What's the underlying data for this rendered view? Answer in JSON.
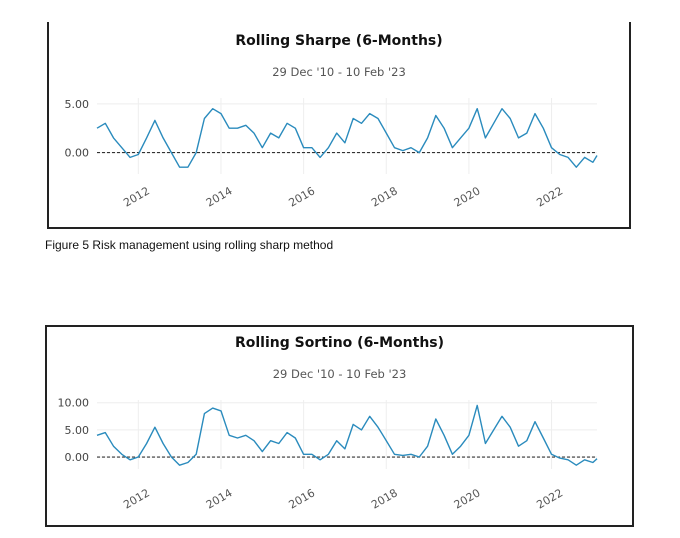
{
  "caption": "Figure 5 Risk management using rolling sharp method",
  "charts": [
    {
      "title": "Rolling Sharpe (6-Months)",
      "subtitle": "29 Dec '10 - 10 Feb '23"
    },
    {
      "title": "Rolling Sortino (6-Months)",
      "subtitle": "29 Dec '10 - 10 Feb '23"
    }
  ],
  "colors": {
    "line": "#2a8bbd",
    "zero_line": "#333333",
    "grid": "#eeeeee"
  },
  "chart_data": [
    {
      "type": "line",
      "title": "Rolling Sharpe (6-Months)",
      "subtitle": "29 Dec '10 - 10 Feb '23",
      "xlim": [
        2011.0,
        2023.1
      ],
      "ylim": [
        -2.2,
        5.6
      ],
      "yticks": [
        0,
        5
      ],
      "ytick_labels": [
        "0.00",
        "5.00"
      ],
      "xticks": [
        2012,
        2014,
        2016,
        2018,
        2020,
        2022
      ],
      "xtick_labels": [
        "2012",
        "2014",
        "2016",
        "2018",
        "2020",
        "2022"
      ],
      "zero_line": true,
      "grid": true,
      "series": [
        {
          "x": [
            2011.0,
            2011.2,
            2011.4,
            2011.6,
            2011.8,
            2012.0,
            2012.2,
            2012.4,
            2012.6,
            2012.8,
            2013.0,
            2013.2,
            2013.4,
            2013.6,
            2013.8,
            2014.0,
            2014.2,
            2014.4,
            2014.6,
            2014.8,
            2015.0,
            2015.2,
            2015.4,
            2015.6,
            2015.8,
            2016.0,
            2016.2,
            2016.4,
            2016.6,
            2016.8,
            2017.0,
            2017.2,
            2017.4,
            2017.6,
            2017.8,
            2018.0,
            2018.2,
            2018.4,
            2018.6,
            2018.8,
            2019.0,
            2019.2,
            2019.4,
            2019.6,
            2019.8,
            2020.0,
            2020.2,
            2020.4,
            2020.6,
            2020.8,
            2021.0,
            2021.2,
            2021.4,
            2021.6,
            2021.8,
            2022.0,
            2022.2,
            2022.4,
            2022.6,
            2022.8,
            2023.0,
            2023.1
          ],
          "y": [
            2.5,
            3.0,
            1.5,
            0.5,
            -0.5,
            -0.2,
            1.5,
            3.3,
            1.5,
            0.0,
            -1.5,
            -1.5,
            0.0,
            3.5,
            4.5,
            4.0,
            2.5,
            2.5,
            2.8,
            2.0,
            0.5,
            2.0,
            1.5,
            3.0,
            2.5,
            0.5,
            0.5,
            -0.5,
            0.5,
            2.0,
            1.0,
            3.5,
            3.0,
            4.0,
            3.5,
            2.0,
            0.5,
            0.2,
            0.5,
            0.0,
            1.5,
            3.8,
            2.5,
            0.5,
            1.5,
            2.5,
            4.5,
            1.5,
            3.0,
            4.5,
            3.5,
            1.5,
            2.0,
            4.0,
            2.5,
            0.5,
            -0.2,
            -0.5,
            -1.5,
            -0.5,
            -1.0,
            -0.3
          ]
        }
      ]
    },
    {
      "type": "line",
      "title": "Rolling Sortino (6-Months)",
      "subtitle": "29 Dec '10 - 10 Feb '23",
      "xlim": [
        2011.0,
        2023.1
      ],
      "ylim": [
        -2.2,
        10.5
      ],
      "yticks": [
        0,
        5,
        10
      ],
      "ytick_labels": [
        "0.00",
        "5.00",
        "10.00"
      ],
      "xticks": [
        2012,
        2014,
        2016,
        2018,
        2020,
        2022
      ],
      "xtick_labels": [
        "2012",
        "2014",
        "2016",
        "2018",
        "2020",
        "2022"
      ],
      "zero_line": true,
      "grid": true,
      "series": [
        {
          "x": [
            2011.0,
            2011.2,
            2011.4,
            2011.6,
            2011.8,
            2012.0,
            2012.2,
            2012.4,
            2012.6,
            2012.8,
            2013.0,
            2013.2,
            2013.4,
            2013.6,
            2013.8,
            2014.0,
            2014.2,
            2014.4,
            2014.6,
            2014.8,
            2015.0,
            2015.2,
            2015.4,
            2015.6,
            2015.8,
            2016.0,
            2016.2,
            2016.4,
            2016.6,
            2016.8,
            2017.0,
            2017.2,
            2017.4,
            2017.6,
            2017.8,
            2018.0,
            2018.2,
            2018.4,
            2018.6,
            2018.8,
            2019.0,
            2019.2,
            2019.4,
            2019.6,
            2019.8,
            2020.0,
            2020.2,
            2020.4,
            2020.6,
            2020.8,
            2021.0,
            2021.2,
            2021.4,
            2021.6,
            2021.8,
            2022.0,
            2022.2,
            2022.4,
            2022.6,
            2022.8,
            2023.0,
            2023.1
          ],
          "y": [
            4.0,
            4.5,
            2.0,
            0.5,
            -0.5,
            0.0,
            2.5,
            5.5,
            2.5,
            0.0,
            -1.5,
            -1.0,
            0.5,
            8.0,
            9.0,
            8.5,
            4.0,
            3.5,
            4.0,
            3.0,
            1.0,
            3.0,
            2.5,
            4.5,
            3.5,
            0.5,
            0.5,
            -0.5,
            0.5,
            3.0,
            1.5,
            6.0,
            5.0,
            7.5,
            5.5,
            3.0,
            0.5,
            0.3,
            0.5,
            0.0,
            2.0,
            7.0,
            4.0,
            0.5,
            2.0,
            4.0,
            9.5,
            2.5,
            5.0,
            7.5,
            5.5,
            2.0,
            3.0,
            6.5,
            3.5,
            0.5,
            -0.2,
            -0.5,
            -1.5,
            -0.5,
            -1.0,
            -0.3
          ]
        }
      ]
    }
  ]
}
